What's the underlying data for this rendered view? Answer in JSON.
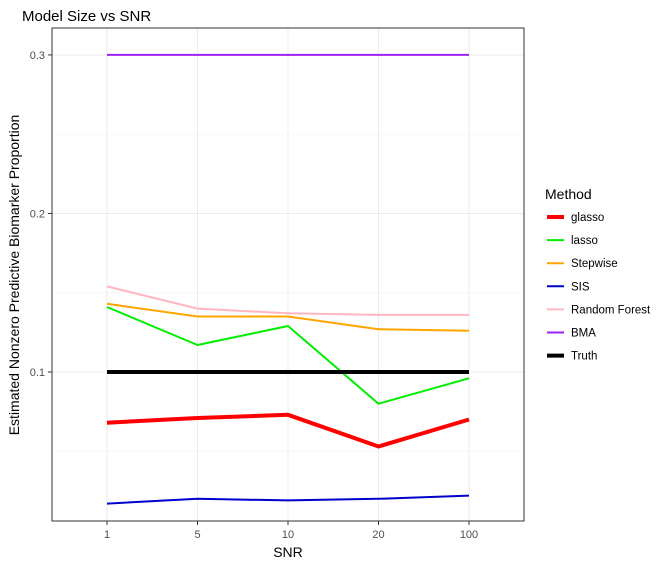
{
  "chart_data": {
    "type": "line",
    "title": "Model Size vs SNR",
    "xlabel": "SNR",
    "ylabel": "Estimated Nonzero Predictive Biomarker Proportion",
    "categories": [
      "1",
      "5",
      "10",
      "20",
      "100"
    ],
    "yticks": [
      "0.1",
      "0.2",
      "0.3"
    ],
    "ytick_values": [
      0.1,
      0.2,
      0.3
    ],
    "ylim": [
      0.006,
      0.317
    ],
    "grid": true,
    "legend": {
      "title": "Method",
      "position": "right"
    },
    "series": [
      {
        "name": "glasso",
        "color": "#ff0000",
        "values": [
          0.068,
          0.071,
          0.073,
          0.053,
          0.07
        ],
        "linewidth": "thick"
      },
      {
        "name": "lasso",
        "color": "#00ee00",
        "values": [
          0.141,
          0.117,
          0.129,
          0.08,
          0.096
        ],
        "linewidth": "normal"
      },
      {
        "name": "Stepwise",
        "color": "#ffa500",
        "values": [
          0.143,
          0.135,
          0.135,
          0.127,
          0.126
        ],
        "linewidth": "normal"
      },
      {
        "name": "SIS",
        "color": "#0000cd",
        "values": [
          0.017,
          0.02,
          0.019,
          0.02,
          0.022
        ],
        "linewidth": "normal"
      },
      {
        "name": "Random Forest",
        "color": "#ffb6c1",
        "values": [
          0.154,
          0.14,
          0.137,
          0.136,
          0.136
        ],
        "linewidth": "normal"
      },
      {
        "name": "BMA",
        "color": "#a020f0",
        "values": [
          0.3,
          0.3,
          0.3,
          0.3,
          0.3
        ],
        "linewidth": "normal"
      },
      {
        "name": "Truth",
        "color": "#000000",
        "values": [
          0.1,
          0.1,
          0.1,
          0.1,
          0.1
        ],
        "linewidth": "thick"
      }
    ]
  }
}
